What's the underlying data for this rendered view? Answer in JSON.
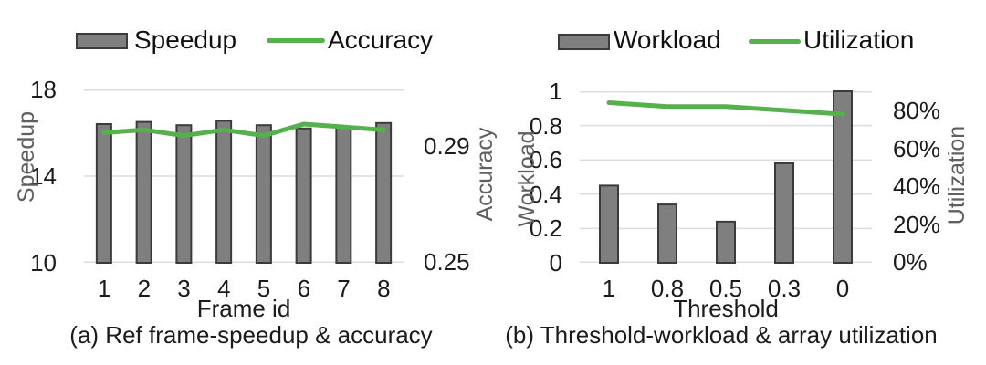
{
  "figure": {
    "background": "#ffffff"
  },
  "colors": {
    "bar_fill": "#7f7f7f",
    "bar_border": "#3b3b3b",
    "line_green": "#55b14c",
    "gridline": "#dcdcdc",
    "tick_text": "#1b1b1b",
    "axis_title_text": "#5f5f5f"
  },
  "chart_data": [
    {
      "type": "bar",
      "subtype": "bar+line combo",
      "title": "(a) Ref frame-speedup & accuracy",
      "xlabel": "Frame id",
      "ylabel_left": "Speedup",
      "ylabel_right": "Accuracy",
      "categories": [
        "1",
        "2",
        "3",
        "4",
        "5",
        "6",
        "7",
        "8"
      ],
      "series": [
        {
          "name": "Speedup",
          "type": "bar",
          "axis": "left",
          "values": [
            16.4,
            16.5,
            16.35,
            16.55,
            16.35,
            16.2,
            16.25,
            16.45
          ]
        },
        {
          "name": "Accuracy",
          "type": "line",
          "axis": "right",
          "values": [
            0.295,
            0.296,
            0.294,
            0.296,
            0.294,
            0.298,
            0.297,
            0.296
          ]
        }
      ],
      "ylim_left": [
        10,
        18
      ],
      "ylim_right": [
        0.25,
        0.31
      ],
      "y_left_ticks": [
        "18",
        "14",
        "10"
      ],
      "y_right_ticks": [
        "0.29",
        "0.25"
      ],
      "grid": "horizontal",
      "legend_position": "top"
    },
    {
      "type": "bar",
      "subtype": "bar+line combo",
      "title": "(b) Threshold-workload & array utilization",
      "xlabel": "Threshold",
      "ylabel_left": "Workload",
      "ylabel_right": "Utilization",
      "categories": [
        "1",
        "0.8",
        "0.5",
        "0.3",
        "0"
      ],
      "series": [
        {
          "name": "Workload",
          "type": "bar",
          "axis": "left",
          "values": [
            0.45,
            0.34,
            0.24,
            0.58,
            1.0
          ]
        },
        {
          "name": "Utilization",
          "type": "line",
          "axis": "right",
          "values": [
            84,
            82,
            82,
            80,
            78
          ]
        }
      ],
      "ylim_left": [
        0,
        1
      ],
      "ylim_right": [
        0,
        90
      ],
      "right_tick_format": "percent",
      "y_left_ticks": [
        "1",
        "0.8",
        "0.6",
        "0.4",
        "0.2",
        "0"
      ],
      "y_right_ticks": [
        "80%",
        "60%",
        "40%",
        "20%",
        "0%"
      ],
      "grid": "horizontal",
      "legend_position": "top"
    }
  ]
}
